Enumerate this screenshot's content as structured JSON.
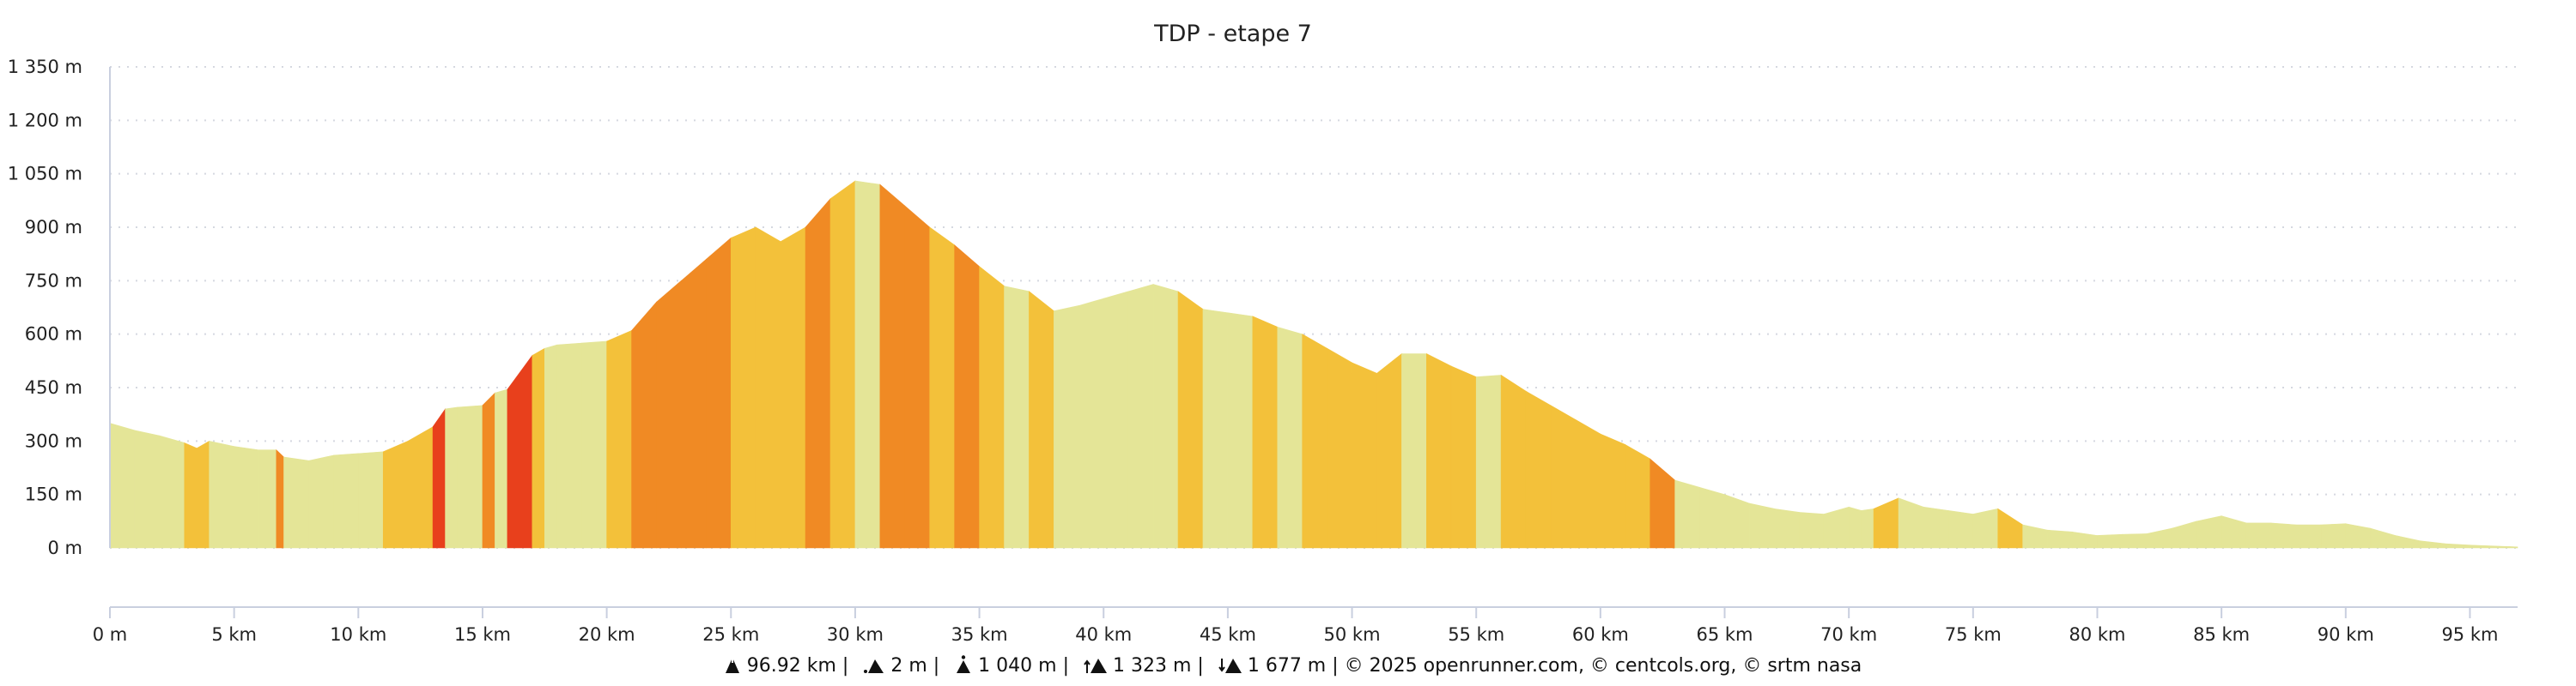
{
  "chart_data": {
    "type": "area",
    "title": "TDP - etape 7",
    "xlabel": "",
    "ylabel": "",
    "xlim": [
      0,
      96.92
    ],
    "ylim": [
      0,
      1350
    ],
    "grid": true,
    "y_ticks": [
      "0 m",
      "150 m",
      "300 m",
      "450 m",
      "600 m",
      "750 m",
      "900 m",
      "1 050 m",
      "1 200 m",
      "1 350 m"
    ],
    "y_tick_values": [
      0,
      150,
      300,
      450,
      600,
      750,
      900,
      1050,
      1200,
      1350
    ],
    "x_ticks": [
      "0 m",
      "5 km",
      "10 km",
      "15 km",
      "20 km",
      "25 km",
      "30 km",
      "35 km",
      "40 km",
      "45 km",
      "50 km",
      "55 km",
      "60 km",
      "65 km",
      "70 km",
      "75 km",
      "80 km",
      "85 km",
      "90 km",
      "95 km"
    ],
    "x_tick_values": [
      0,
      5,
      10,
      15,
      20,
      25,
      30,
      35,
      40,
      45,
      50,
      55,
      60,
      65,
      70,
      75,
      80,
      85,
      90,
      95
    ],
    "series": [
      {
        "x_km": [
          0,
          1,
          2,
          3,
          3.5,
          4,
          5,
          6,
          6.7,
          7,
          8,
          9,
          10,
          11,
          12,
          13,
          13.5,
          14,
          15,
          15.5,
          16,
          17,
          17.5,
          18,
          19,
          20,
          21,
          22,
          23,
          24,
          25,
          26,
          27,
          28,
          29,
          30,
          31,
          32,
          33,
          34,
          35,
          36,
          37,
          38,
          39,
          40,
          41,
          42,
          43,
          44,
          45,
          46,
          47,
          48,
          49,
          50,
          51,
          52,
          53,
          54,
          55,
          56,
          57,
          58,
          59,
          60,
          61,
          62,
          63,
          64,
          65,
          66,
          67,
          68,
          69,
          70,
          70.5,
          71,
          72,
          73,
          74,
          75,
          76,
          77,
          78,
          79,
          80,
          81,
          82,
          83,
          84,
          85,
          86,
          87,
          88,
          89,
          90,
          91,
          92,
          93,
          94,
          95,
          96.92
        ],
        "elevation_m": [
          350,
          330,
          315,
          295,
          280,
          300,
          285,
          275,
          275,
          255,
          245,
          260,
          265,
          270,
          300,
          340,
          390,
          395,
          400,
          435,
          445,
          540,
          560,
          570,
          575,
          580,
          610,
          690,
          750,
          810,
          870,
          900,
          860,
          900,
          980,
          1030,
          1020,
          960,
          900,
          850,
          790,
          735,
          720,
          665,
          680,
          700,
          720,
          740,
          720,
          670,
          660,
          650,
          620,
          600,
          560,
          520,
          490,
          545,
          545,
          510,
          480,
          485,
          440,
          400,
          360,
          320,
          290,
          250,
          190,
          170,
          150,
          125,
          110,
          100,
          95,
          115,
          105,
          110,
          140,
          115,
          105,
          95,
          110,
          65,
          50,
          45,
          35,
          38,
          40,
          55,
          75,
          90,
          70,
          70,
          65,
          65,
          68,
          55,
          35,
          20,
          12,
          8,
          3
        ]
      }
    ],
    "gradient_colors": {
      "flat": "#e4e597",
      "moderate": "#f3c13a",
      "steep": "#f08a24",
      "very_steep": "#e8401c",
      "extreme": "#9b4220"
    },
    "grid_color": "#d5d8e0",
    "axis_color": "#c9cfdf"
  },
  "footer": {
    "distance": "96.92 km",
    "min_elevation": "2 m",
    "max_elevation": "1 040 m",
    "ascent": "1 323 m",
    "descent": "1 677 m",
    "separator": "|",
    "credits": "© 2025 openrunner.com, © centcols.org, © srtm nasa"
  }
}
